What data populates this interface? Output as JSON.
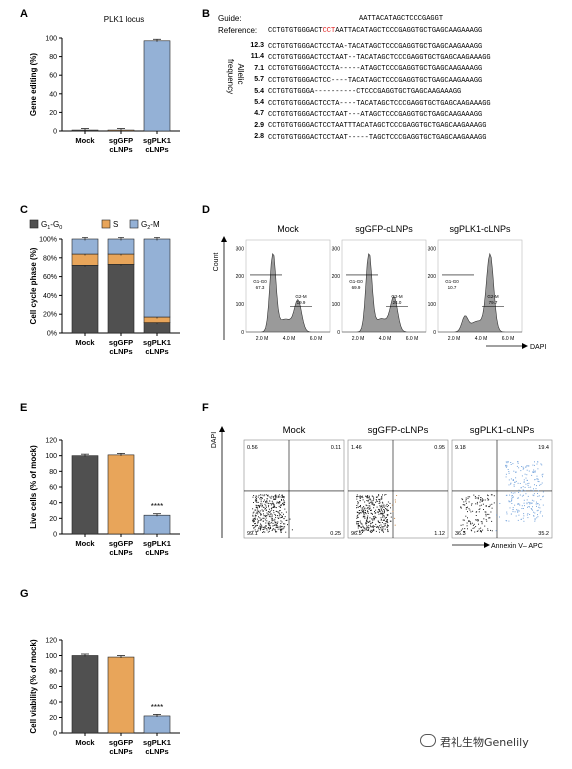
{
  "panel_labels": {
    "A": "A",
    "B": "B",
    "C": "C",
    "D": "D",
    "E": "E",
    "F": "F",
    "G": "G"
  },
  "panelA": {
    "chart_data": {
      "type": "bar",
      "title": "PLK1 locus",
      "ylabel": "Gene editing (%)",
      "categories": [
        "Mock",
        "sgGFP\ncLNPs",
        "sgPLK1\ncLNPs"
      ],
      "values": [
        1,
        1,
        97
      ],
      "colors": [
        "#505050",
        "#e8a55a",
        "#94b1d6"
      ],
      "ylim": [
        0,
        100
      ],
      "yticks": [
        "0",
        "20",
        "40",
        "60",
        "80",
        "100"
      ]
    }
  },
  "panelB": {
    "guide_label": "Guide:",
    "guide_seq": "AATTACATAGCTCCCGAGGT",
    "reference_label": "Reference:",
    "reference_seq_pre": "CCTGTGTGGGACT",
    "reference_seq_pam": "CCT",
    "reference_seq_post": "AATTACATAGCTCCCGAGGTGCTGAGCAAGAAAGG",
    "axis_label": "Allelic\nfrequency",
    "alleles": [
      {
        "freq": "12.3",
        "seq": "CCTGTGTGGGACTCCTAA-TACATAGCTCCCGAGGTGCTGAGCAAGAAAGG"
      },
      {
        "freq": "11.4",
        "seq": "CCTGTGTGGGACTCCTAAT--TACATAGCTCCCGAGGTGCTGAGCAAGAAAGG"
      },
      {
        "freq": "7.1",
        "seq": "CCTGTGTGGGACTCCTA-----ATAGCTCCCGAGGTGCTGAGCAAGAAAGG"
      },
      {
        "freq": "5.7",
        "seq": "CCTGTGTGGGACTCC----TACATAGCTCCCGAGGTGCTGAGCAAGAAAGG"
      },
      {
        "freq": "5.4",
        "seq": "CCTGTGTGGGA----------CTCCCGAGGTGCTGAGCAAGAAAGG"
      },
      {
        "freq": "5.4",
        "seq": "CCTGTGTGGGACTCCTA----TACATAGCTCCCGAGGTGCTGAGCAAGAAAGG"
      },
      {
        "freq": "4.7",
        "seq": "CCTGTGTGGGACTCCTAAT---ATAGCTCCCGAGGTGCTGAGCAAGAAAGG"
      },
      {
        "freq": "2.9",
        "seq": "CCTGTGTGGGACTCCTAATTTACATAGCTCCCGAGGTGCTGAGCAAGAAAGG"
      },
      {
        "freq": "2.8",
        "seq": "CCTGTGTGGGACTCCTAAT-----TAGCTCCCGAGGTGCTGAGCAAGAAAGG"
      }
    ]
  },
  "panelC": {
    "chart_data": {
      "type": "bar",
      "stacked": true,
      "ylabel": "Cell cycle phase (%)",
      "categories": [
        "Mock",
        "sgGFP\ncLNPs",
        "sgPLK1\ncLNPs"
      ],
      "series": [
        {
          "name": "G1-G0",
          "color": "#505050",
          "values": [
            72,
            73,
            11
          ]
        },
        {
          "name": "S",
          "color": "#e8a55a",
          "values": [
            12,
            11,
            6
          ]
        },
        {
          "name": "G2-M",
          "color": "#94b1d6",
          "values": [
            16,
            16,
            83
          ]
        }
      ],
      "legend": {
        "g1": "G",
        "g1sub": "1",
        "g1mid": "-G",
        "g1sub2": "0",
        "s": "S",
        "g2": "G",
        "g2sub": "2",
        "g2end": "-M"
      },
      "ylim": [
        0,
        100
      ],
      "yticks": [
        "0%",
        "20%",
        "40%",
        "60%",
        "80%",
        "100%"
      ]
    }
  },
  "panelD": {
    "histograms": [
      {
        "title": "Mock",
        "g1": "67.3",
        "g2": "19.9",
        "peaks": [
          1.0,
          0.38
        ]
      },
      {
        "title": "sgGFP-cLNPs",
        "g1": "69.9",
        "g2": "24.0",
        "peaks": [
          1.0,
          0.42
        ]
      },
      {
        "title": "sgPLK1-cLNPs",
        "g1": "10.7",
        "g2": "79.7",
        "peaks": [
          0.18,
          0.98
        ]
      }
    ],
    "ylabel": "Count",
    "xlabel": "DAPI",
    "yticks": [
      "0",
      "100",
      "200",
      "300"
    ],
    "xticks": [
      "2.0 M",
      "4.0 M",
      "6.0 M"
    ],
    "gate_g1": "G1-G0",
    "gate_g2": "G2-M"
  },
  "panelE": {
    "chart_data": {
      "type": "bar",
      "ylabel": "Live cells (% of mock)",
      "categories": [
        "Mock",
        "sgGFP\ncLNPs",
        "sgPLK1\ncLNPs"
      ],
      "values": [
        100,
        101,
        24
      ],
      "colors": [
        "#505050",
        "#e8a55a",
        "#94b1d6"
      ],
      "ylim": [
        0,
        120
      ],
      "yticks": [
        "0",
        "20",
        "40",
        "60",
        "80",
        "100",
        "120"
      ],
      "annotation": "****"
    }
  },
  "panelF": {
    "plots": [
      {
        "title": "Mock",
        "tl": "0.56",
        "tr": "0.11",
        "bl": "99.1",
        "br": "0.25",
        "dotColor": "#222"
      },
      {
        "title": "sgGFP-cLNPs",
        "tl": "1.46",
        "tr": "0.95",
        "bl": "96.5",
        "br": "1.12",
        "dotColor": "#c98a4a"
      },
      {
        "title": "sgPLK1-cLNPs",
        "tl": "9.18",
        "tr": "19.4",
        "bl": "36.3",
        "br": "35.2",
        "dotColor": "#7aa7dd"
      }
    ],
    "ylabel": "DAPI",
    "xlabel": "Annexin V– APC"
  },
  "panelG": {
    "chart_data": {
      "type": "bar",
      "ylabel": "Cell viability (% of mock)",
      "categories": [
        "Mock",
        "sgGFP\ncLNPs",
        "sgPLK1\ncLNPs"
      ],
      "values": [
        100,
        98,
        22
      ],
      "colors": [
        "#505050",
        "#e8a55a",
        "#94b1d6"
      ],
      "ylim": [
        0,
        120
      ],
      "yticks": [
        "0",
        "20",
        "40",
        "60",
        "80",
        "100",
        "120"
      ],
      "annotation": "****"
    }
  },
  "watermark": {
    "text": "君礼生物Genelily"
  }
}
